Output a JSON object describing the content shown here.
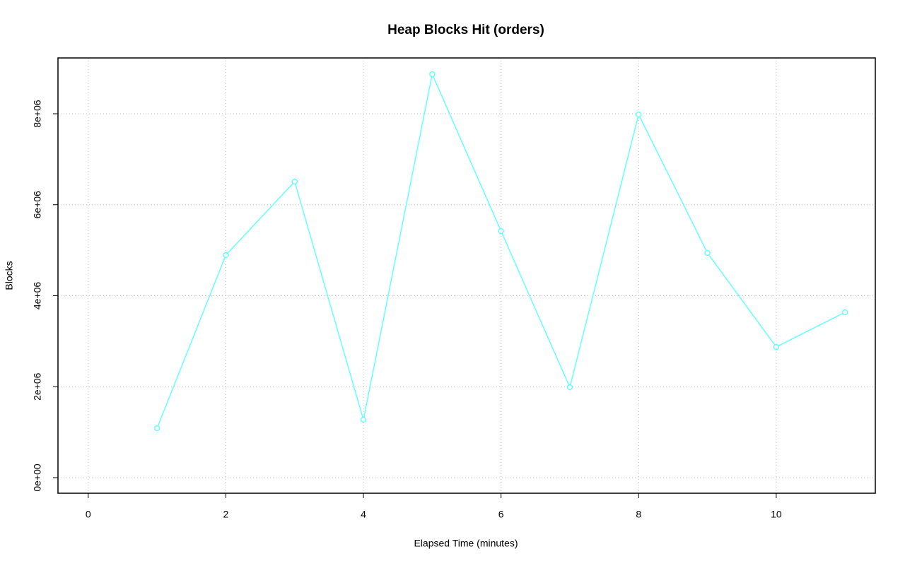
{
  "chart_data": {
    "type": "line",
    "title": "Heap Blocks Hit (orders)",
    "x_label": "Elapsed Time (minutes)",
    "y_label": "Blocks",
    "x": [
      1,
      2,
      3,
      4,
      5,
      6,
      7,
      8,
      9,
      10,
      11
    ],
    "values": [
      1087000,
      4893000,
      6509000,
      1274000,
      8870000,
      5421000,
      1988000,
      7984000,
      4940000,
      2874000,
      3635000
    ],
    "color": "#66ffff",
    "xlim": [
      -0.44,
      11.44
    ],
    "ylim": [
      -342000,
      9227000
    ],
    "xticks": [
      0,
      2,
      4,
      6,
      8,
      10
    ],
    "yticks": [
      {
        "value": 0,
        "label": "0e+00"
      },
      {
        "value": 2000000,
        "label": "2e+06"
      },
      {
        "value": 4000000,
        "label": "4e+06"
      },
      {
        "value": 6000000,
        "label": "6e+06"
      },
      {
        "value": 8000000,
        "label": "8e+06"
      }
    ],
    "grid": true
  }
}
